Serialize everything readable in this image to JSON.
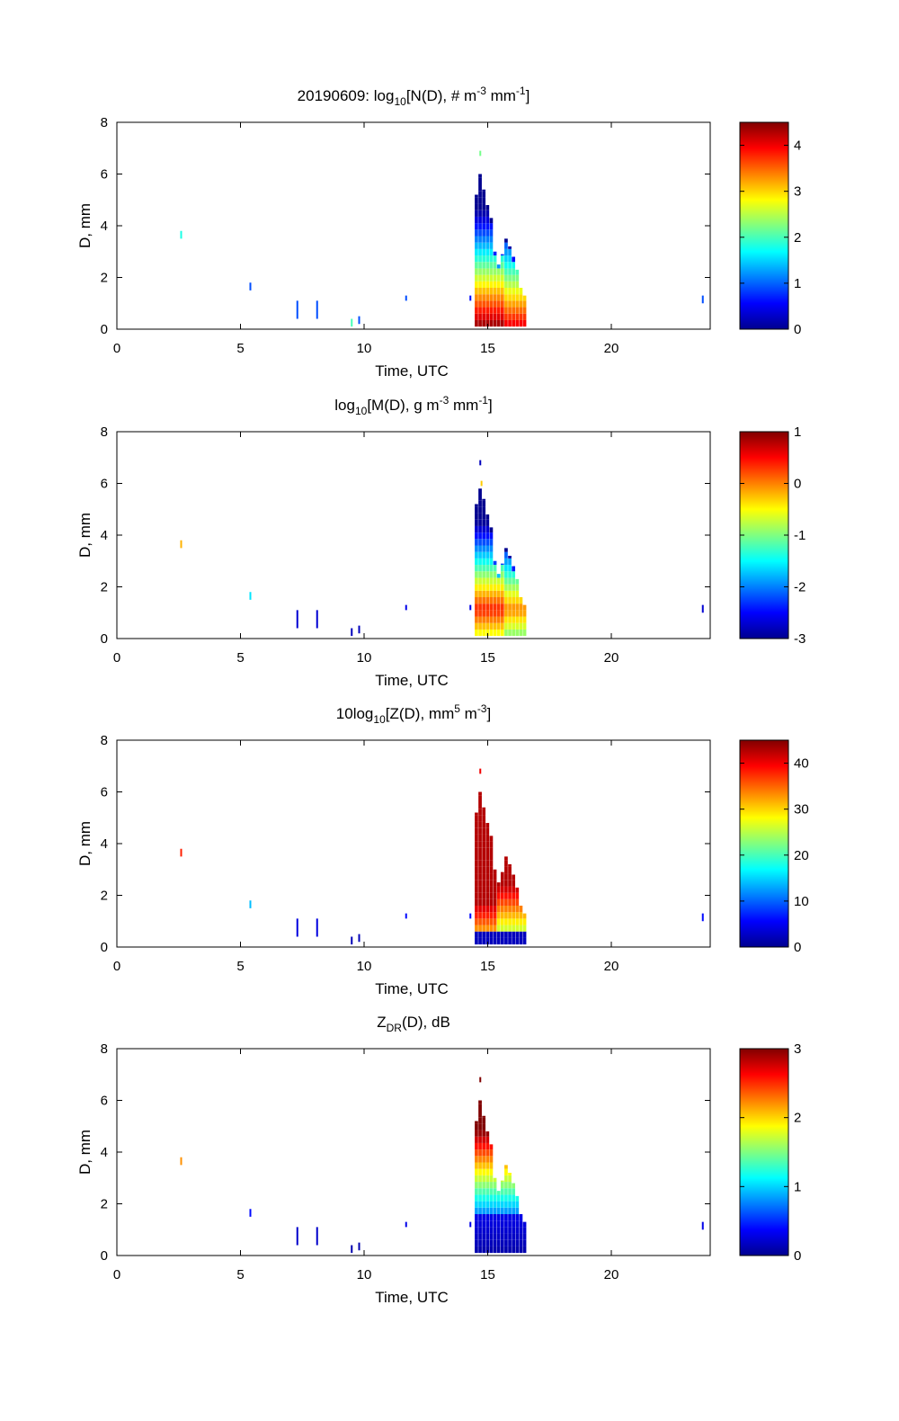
{
  "colormap": [
    "#00008f",
    "#0000ff",
    "#0080ff",
    "#00ffff",
    "#80ff80",
    "#ffff00",
    "#ff8000",
    "#ff0000",
    "#800000"
  ],
  "chart_data": [
    {
      "type": "heatmap",
      "title_parts": [
        "20190609: log",
        "10",
        "[N(D), # m",
        "-3",
        " mm",
        "-1",
        "]"
      ],
      "xlabel": "Time, UTC",
      "ylabel": "D, mm",
      "xlim": [
        0,
        24
      ],
      "ylim": [
        0,
        8
      ],
      "xticks": [
        0,
        5,
        10,
        15,
        20
      ],
      "yticks": [
        0,
        2,
        4,
        6,
        8
      ],
      "colorbar": {
        "range": [
          0,
          4.5
        ],
        "ticks": [
          0,
          1,
          2,
          3,
          4
        ]
      },
      "cells": [
        {
          "t": 2.6,
          "d0": 3.5,
          "d1": 3.8,
          "v": 1.8
        },
        {
          "t": 5.4,
          "d0": 1.5,
          "d1": 1.8,
          "v": 0.9
        },
        {
          "t": 7.3,
          "d0": 0.4,
          "d1": 1.1,
          "v": 0.9
        },
        {
          "t": 8.1,
          "d0": 0.4,
          "d1": 1.1,
          "v": 0.9
        },
        {
          "t": 9.5,
          "d0": 0.1,
          "d1": 0.4,
          "v": 2.0
        },
        {
          "t": 9.8,
          "d0": 0.2,
          "d1": 0.5,
          "v": 0.9
        },
        {
          "t": 11.7,
          "d0": 1.1,
          "d1": 1.3,
          "v": 0.9
        },
        {
          "t": 14.3,
          "d0": 1.1,
          "d1": 1.3,
          "v": 0.6
        },
        {
          "t": 14.7,
          "d0": 6.7,
          "d1": 6.9,
          "v": 2.2
        },
        {
          "t": 23.7,
          "d0": 1.0,
          "d1": 1.3,
          "v": 0.9
        }
      ],
      "storm": [
        {
          "t": 14.55,
          "dmax": 5.2
        },
        {
          "t": 14.7,
          "dmax": 6.0
        },
        {
          "t": 14.85,
          "dmax": 5.4
        },
        {
          "t": 15.0,
          "dmax": 4.8
        },
        {
          "t": 15.15,
          "dmax": 4.3
        },
        {
          "t": 15.3,
          "dmax": 3.0
        },
        {
          "t": 15.45,
          "dmax": 2.5
        },
        {
          "t": 15.6,
          "dmax": 2.9
        },
        {
          "t": 15.75,
          "dmax": 3.5
        },
        {
          "t": 15.9,
          "dmax": 3.2
        },
        {
          "t": 16.05,
          "dmax": 2.8
        },
        {
          "t": 16.2,
          "dmax": 2.3
        },
        {
          "t": 16.35,
          "dmax": 1.6
        },
        {
          "t": 16.5,
          "dmax": 1.3
        }
      ]
    },
    {
      "type": "heatmap",
      "title_parts": [
        "log",
        "10",
        "[M(D), g m",
        "-3",
        " mm",
        "-1",
        "]"
      ],
      "xlabel": "Time, UTC",
      "ylabel": "D, mm",
      "xlim": [
        0,
        24
      ],
      "ylim": [
        0,
        8
      ],
      "xticks": [
        0,
        5,
        10,
        15,
        20
      ],
      "yticks": [
        0,
        2,
        4,
        6,
        8
      ],
      "colorbar": {
        "range": [
          -3,
          1
        ],
        "ticks": [
          1,
          0,
          -1,
          -2,
          -3
        ]
      },
      "cells": [
        {
          "t": 2.6,
          "d0": 3.5,
          "d1": 3.8,
          "v": -0.2
        },
        {
          "t": 5.4,
          "d0": 1.5,
          "d1": 1.8,
          "v": -1.6
        },
        {
          "t": 7.3,
          "d0": 0.4,
          "d1": 1.1,
          "v": -2.7
        },
        {
          "t": 8.1,
          "d0": 0.4,
          "d1": 1.1,
          "v": -2.7
        },
        {
          "t": 9.5,
          "d0": 0.1,
          "d1": 0.4,
          "v": -2.8
        },
        {
          "t": 9.8,
          "d0": 0.2,
          "d1": 0.5,
          "v": -2.8
        },
        {
          "t": 11.7,
          "d0": 1.1,
          "d1": 1.3,
          "v": -2.6
        },
        {
          "t": 14.3,
          "d0": 1.1,
          "d1": 1.3,
          "v": -2.6
        },
        {
          "t": 14.7,
          "d0": 6.7,
          "d1": 6.9,
          "v": -2.8
        },
        {
          "t": 14.75,
          "d0": 5.9,
          "d1": 6.1,
          "v": -0.3
        },
        {
          "t": 23.7,
          "d0": 1.0,
          "d1": 1.3,
          "v": -2.7
        }
      ],
      "storm": [
        {
          "t": 14.55,
          "dmax": 5.2
        },
        {
          "t": 14.7,
          "dmax": 5.8
        },
        {
          "t": 14.85,
          "dmax": 5.4
        },
        {
          "t": 15.0,
          "dmax": 4.8
        },
        {
          "t": 15.15,
          "dmax": 4.3
        },
        {
          "t": 15.3,
          "dmax": 3.0
        },
        {
          "t": 15.45,
          "dmax": 2.5
        },
        {
          "t": 15.6,
          "dmax": 2.9
        },
        {
          "t": 15.75,
          "dmax": 3.5
        },
        {
          "t": 15.9,
          "dmax": 3.2
        },
        {
          "t": 16.05,
          "dmax": 2.8
        },
        {
          "t": 16.2,
          "dmax": 2.3
        },
        {
          "t": 16.35,
          "dmax": 1.6
        },
        {
          "t": 16.5,
          "dmax": 1.3
        }
      ]
    },
    {
      "type": "heatmap",
      "title_parts": [
        "10log",
        "10",
        "[Z(D),  mm",
        "5",
        " m",
        "-3",
        "]"
      ],
      "xlabel": "Time, UTC",
      "ylabel": "D, mm",
      "xlim": [
        0,
        24
      ],
      "ylim": [
        0,
        8
      ],
      "xticks": [
        0,
        5,
        10,
        15,
        20
      ],
      "yticks": [
        0,
        2,
        4,
        6,
        8
      ],
      "colorbar": {
        "range": [
          0,
          45
        ],
        "ticks": [
          0,
          10,
          20,
          30,
          40
        ]
      },
      "cells": [
        {
          "t": 2.6,
          "d0": 3.5,
          "d1": 3.8,
          "v": 38
        },
        {
          "t": 5.4,
          "d0": 1.5,
          "d1": 1.8,
          "v": 14
        },
        {
          "t": 7.3,
          "d0": 0.4,
          "d1": 1.1,
          "v": 4
        },
        {
          "t": 8.1,
          "d0": 0.4,
          "d1": 1.1,
          "v": 4
        },
        {
          "t": 9.5,
          "d0": 0.1,
          "d1": 0.4,
          "v": 2
        },
        {
          "t": 9.8,
          "d0": 0.2,
          "d1": 0.5,
          "v": 2
        },
        {
          "t": 11.7,
          "d0": 1.1,
          "d1": 1.3,
          "v": 6
        },
        {
          "t": 14.3,
          "d0": 1.1,
          "d1": 1.3,
          "v": 6
        },
        {
          "t": 14.7,
          "d0": 6.7,
          "d1": 6.9,
          "v": 40
        },
        {
          "t": 23.7,
          "d0": 1.0,
          "d1": 1.3,
          "v": 6
        }
      ],
      "storm": [
        {
          "t": 14.55,
          "dmax": 5.2
        },
        {
          "t": 14.7,
          "dmax": 6.0
        },
        {
          "t": 14.85,
          "dmax": 5.4
        },
        {
          "t": 15.0,
          "dmax": 4.8
        },
        {
          "t": 15.15,
          "dmax": 4.3
        },
        {
          "t": 15.3,
          "dmax": 3.0
        },
        {
          "t": 15.45,
          "dmax": 2.5
        },
        {
          "t": 15.6,
          "dmax": 2.9
        },
        {
          "t": 15.75,
          "dmax": 3.5
        },
        {
          "t": 15.9,
          "dmax": 3.2
        },
        {
          "t": 16.05,
          "dmax": 2.8
        },
        {
          "t": 16.2,
          "dmax": 2.3
        },
        {
          "t": 16.35,
          "dmax": 1.6
        },
        {
          "t": 16.5,
          "dmax": 1.3
        }
      ]
    },
    {
      "type": "heatmap",
      "title_parts": [
        "Z",
        "DR",
        "(D), dB"
      ],
      "xlabel": "Time, UTC",
      "ylabel": "D, mm",
      "xlim": [
        0,
        24
      ],
      "ylim": [
        0,
        8
      ],
      "xticks": [
        0,
        5,
        10,
        15,
        20
      ],
      "yticks": [
        0,
        2,
        4,
        6,
        8
      ],
      "colorbar": {
        "range": [
          0,
          3
        ],
        "ticks": [
          0,
          1,
          2,
          3
        ]
      },
      "cells": [
        {
          "t": 2.6,
          "d0": 3.5,
          "d1": 3.8,
          "v": 2.2
        },
        {
          "t": 5.4,
          "d0": 1.5,
          "d1": 1.8,
          "v": 0.4
        },
        {
          "t": 7.3,
          "d0": 0.4,
          "d1": 1.1,
          "v": 0.2
        },
        {
          "t": 8.1,
          "d0": 0.4,
          "d1": 1.1,
          "v": 0.2
        },
        {
          "t": 9.5,
          "d0": 0.1,
          "d1": 0.4,
          "v": 0.1
        },
        {
          "t": 9.8,
          "d0": 0.2,
          "d1": 0.5,
          "v": 0.1
        },
        {
          "t": 11.7,
          "d0": 1.1,
          "d1": 1.3,
          "v": 0.3
        },
        {
          "t": 14.3,
          "d0": 1.1,
          "d1": 1.3,
          "v": 0.3
        },
        {
          "t": 14.7,
          "d0": 6.7,
          "d1": 6.9,
          "v": 3.0
        },
        {
          "t": 23.7,
          "d0": 1.0,
          "d1": 1.3,
          "v": 0.3
        }
      ],
      "storm": [
        {
          "t": 14.55,
          "dmax": 5.2
        },
        {
          "t": 14.7,
          "dmax": 6.0
        },
        {
          "t": 14.85,
          "dmax": 5.4
        },
        {
          "t": 15.0,
          "dmax": 4.8
        },
        {
          "t": 15.15,
          "dmax": 4.3
        },
        {
          "t": 15.3,
          "dmax": 3.0
        },
        {
          "t": 15.45,
          "dmax": 2.5
        },
        {
          "t": 15.6,
          "dmax": 2.9
        },
        {
          "t": 15.75,
          "dmax": 3.5
        },
        {
          "t": 15.9,
          "dmax": 3.2
        },
        {
          "t": 16.05,
          "dmax": 2.8
        },
        {
          "t": 16.2,
          "dmax": 2.3
        },
        {
          "t": 16.35,
          "dmax": 1.6
        },
        {
          "t": 16.5,
          "dmax": 1.3
        }
      ]
    }
  ]
}
